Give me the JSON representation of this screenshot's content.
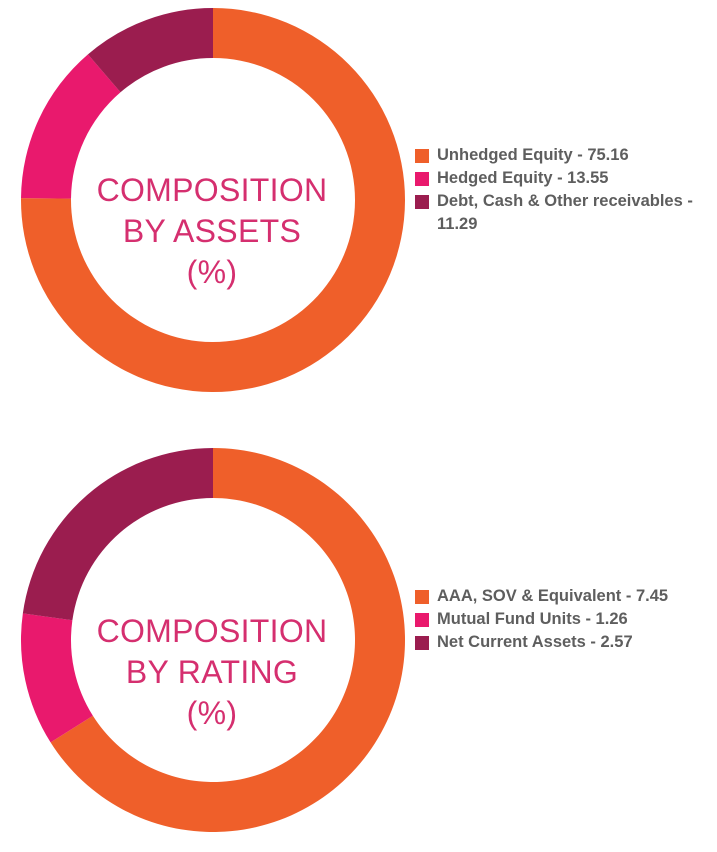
{
  "chart_data": [
    {
      "type": "pie",
      "title_lines": [
        "COMPOSITION",
        "BY ASSETS",
        "(%)"
      ],
      "categories": [
        "Unhedged Equity",
        "Hedged Equity",
        "Debt, Cash & Other receivables"
      ],
      "values": [
        75.16,
        13.55,
        11.29
      ],
      "colors": [
        "#ef5f2a",
        "#e9196d",
        "#9b1d4f"
      ],
      "legend": [
        {
          "text": "Unhedged Equity - 75.16",
          "color": "#ef5f2a"
        },
        {
          "text": "Hedged Equity - 13.55",
          "color": "#e9196d"
        },
        {
          "text": "Debt, Cash & Other receivables - 11.29",
          "color": "#9b1d4f"
        }
      ],
      "legend_position": "right"
    },
    {
      "type": "pie",
      "title_lines": [
        "COMPOSITION",
        "BY RATING",
        "(%)"
      ],
      "categories": [
        "AAA, SOV & Equivalent",
        "Mutual Fund Units",
        "Net Current Assets"
      ],
      "values": [
        7.45,
        1.26,
        2.57
      ],
      "colors": [
        "#ef5f2a",
        "#e9196d",
        "#9b1d4f"
      ],
      "legend": [
        {
          "text": "AAA, SOV & Equivalent - 7.45",
          "color": "#ef5f2a"
        },
        {
          "text": "Mutual Fund Units - 1.26",
          "color": "#e9196d"
        },
        {
          "text": "Net Current Assets - 2.57",
          "color": "#9b1d4f"
        }
      ],
      "legend_position": "right"
    }
  ]
}
